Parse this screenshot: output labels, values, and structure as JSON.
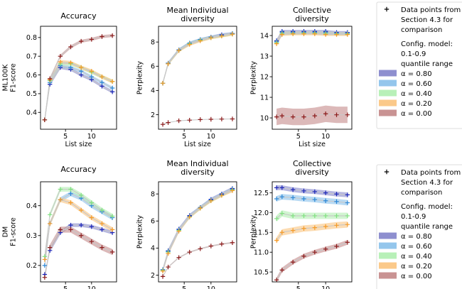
{
  "figure": {
    "legend": {
      "entries": [
        {
          "id": "data",
          "marker": "plus",
          "color": "#000000",
          "label_lines": [
            "Data points from",
            "Section 4.3 for",
            "comparison"
          ]
        },
        {
          "id": "note",
          "marker": "none",
          "color": "",
          "label_lines": [
            "Config. model:",
            "0.1-0.9",
            "quantile range"
          ]
        },
        {
          "id": "a080",
          "marker": "patch",
          "color": "#8e8fcf",
          "label_lines": [
            "α = 0.80"
          ]
        },
        {
          "id": "a060",
          "marker": "patch",
          "color": "#94c6ec",
          "label_lines": [
            "α = 0.60"
          ]
        },
        {
          "id": "a040",
          "marker": "patch",
          "color": "#b8f0b8",
          "label_lines": [
            "α = 0.40"
          ]
        },
        {
          "id": "a020",
          "marker": "patch",
          "color": "#fbc98a",
          "label_lines": [
            "α = 0.20"
          ]
        },
        {
          "id": "a000",
          "marker": "patch",
          "color": "#c99393",
          "label_lines": [
            "α = 0.00"
          ]
        }
      ]
    },
    "series_colors": {
      "0.80": {
        "band": "#8e8fcf",
        "line": "#5b5fbe",
        "marker": "#1a24b8"
      },
      "0.60": {
        "band": "#94c6ec",
        "line": "#62a7dd",
        "marker": "#2a86d6"
      },
      "0.40": {
        "band": "#b8f0b8",
        "line": "#8fdc8f",
        "marker": "#7fe07f"
      },
      "0.20": {
        "band": "#fbc98a",
        "line": "#f5ad55",
        "marker": "#f59a26"
      },
      "0.00": {
        "band": "#c99393",
        "line": "#b36f6f",
        "marker": "#8b1a1a"
      },
      "gray": "#c8c8c8"
    }
  },
  "chart_data": [
    {
      "id": "ml-accuracy",
      "type": "line",
      "title_lines": [
        "Accuracy"
      ],
      "ylabel_lines": [
        "ML100K",
        "F1-score"
      ],
      "xlabel": "List size",
      "xlim": [
        0.2,
        14.8
      ],
      "ylim": [
        0.31,
        0.86
      ],
      "xticks": [
        5,
        10
      ],
      "yticks": [
        0.4,
        0.5,
        0.6,
        0.7,
        0.8
      ],
      "ytick_labels": [
        "0.4",
        "0.5",
        "0.6",
        "0.7",
        "0.8"
      ],
      "x": [
        1,
        2,
        4,
        6,
        8,
        10,
        12,
        14
      ],
      "series": [
        {
          "alpha": "0.80",
          "values": [
            0.36,
            0.55,
            0.64,
            0.63,
            0.6,
            0.575,
            0.54,
            0.51
          ],
          "band": 0.008
        },
        {
          "alpha": "0.60",
          "values": [
            0.36,
            0.56,
            0.65,
            0.64,
            0.62,
            0.59,
            0.56,
            0.53
          ],
          "band": 0.008
        },
        {
          "alpha": "0.40",
          "values": [
            0.36,
            0.57,
            0.66,
            0.66,
            0.64,
            0.615,
            0.59,
            0.565
          ],
          "band": 0.01
        },
        {
          "alpha": "0.20",
          "values": [
            0.36,
            0.575,
            0.67,
            0.665,
            0.64,
            0.62,
            0.59,
            0.565
          ],
          "band": 0.01
        },
        {
          "alpha": "0.00",
          "values": [
            0.36,
            0.58,
            0.7,
            0.75,
            0.78,
            0.79,
            0.805,
            0.81
          ],
          "band": 0.008
        }
      ]
    },
    {
      "id": "ml-diversity",
      "type": "line",
      "title_lines": [
        "Mean Individual",
        "diversity"
      ],
      "ylabel_lines": [
        "Perplexity"
      ],
      "xlabel": "List size",
      "xlim": [
        0.2,
        14.8
      ],
      "ylim": [
        0.8,
        9.3
      ],
      "xticks": [
        5,
        10
      ],
      "yticks": [
        2,
        4,
        6,
        8
      ],
      "ytick_labels": [
        "2",
        "4",
        "6",
        "8"
      ],
      "x": [
        1,
        2,
        4,
        6,
        8,
        10,
        12,
        14
      ],
      "series": [
        {
          "alpha": "0.80",
          "values": [
            4.6,
            6.25,
            7.35,
            7.9,
            8.2,
            8.4,
            8.6,
            8.7
          ],
          "band": 0.12
        },
        {
          "alpha": "0.60",
          "values": [
            4.6,
            6.25,
            7.35,
            7.9,
            8.2,
            8.4,
            8.55,
            8.7
          ],
          "band": 0.12
        },
        {
          "alpha": "0.40",
          "values": [
            4.6,
            6.2,
            7.3,
            7.85,
            8.15,
            8.35,
            8.5,
            8.65
          ],
          "band": 0.12
        },
        {
          "alpha": "0.20",
          "values": [
            4.6,
            6.2,
            7.3,
            7.8,
            8.1,
            8.35,
            8.5,
            8.65
          ],
          "band": 0.12
        },
        {
          "alpha": "0.00",
          "values": [
            1.2,
            1.35,
            1.5,
            1.55,
            1.6,
            1.62,
            1.64,
            1.65
          ],
          "band": 0
        }
      ]
    },
    {
      "id": "ml-collective",
      "type": "line",
      "title_lines": [
        "Collective",
        "diversity"
      ],
      "ylabel_lines": [
        "Perplexity"
      ],
      "xlabel": "List size",
      "xlim": [
        0.2,
        14.8
      ],
      "ylim": [
        9.45,
        14.45
      ],
      "xticks": [
        5,
        10
      ],
      "yticks": [
        10,
        11,
        12,
        13,
        14
      ],
      "ytick_labels": [
        "10",
        "11",
        "12",
        "13",
        "14"
      ],
      "x": [
        1,
        2,
        4,
        6,
        8,
        10,
        12,
        14
      ],
      "series": [
        {
          "alpha": "0.80",
          "values": [
            13.75,
            14.2,
            14.2,
            14.2,
            14.2,
            14.2,
            14.15,
            14.15
          ],
          "band": 0.07
        },
        {
          "alpha": "0.60",
          "values": [
            13.7,
            14.15,
            14.15,
            14.15,
            14.15,
            14.15,
            14.1,
            14.1
          ],
          "band": 0.07
        },
        {
          "alpha": "0.40",
          "values": [
            13.65,
            14.1,
            14.1,
            14.12,
            14.12,
            14.1,
            14.08,
            14.08
          ],
          "band": 0.07
        },
        {
          "alpha": "0.20",
          "values": [
            13.6,
            14.05,
            14.08,
            14.08,
            14.08,
            14.05,
            14.05,
            14.05
          ],
          "band": 0.07
        },
        {
          "alpha": "0.00",
          "values": [
            10.05,
            10.1,
            10.05,
            10.05,
            10.1,
            10.2,
            10.15,
            10.15
          ],
          "band": 0.4
        }
      ]
    },
    {
      "id": "dm-accuracy",
      "type": "line",
      "title_lines": [
        "Accuracy"
      ],
      "ylabel_lines": [
        "DM",
        "F1-score"
      ],
      "xlabel": "List size",
      "xlim": [
        0.2,
        14.8
      ],
      "ylim": [
        0.145,
        0.48
      ],
      "xticks": [
        5,
        10
      ],
      "yticks": [
        0.2,
        0.3,
        0.4
      ],
      "ytick_labels": [
        "0.2",
        "0.3",
        "0.4"
      ],
      "x": [
        1,
        2,
        4,
        6,
        8,
        10,
        12,
        14
      ],
      "series": [
        {
          "alpha": "0.80",
          "values": [
            0.17,
            0.25,
            0.31,
            0.335,
            0.335,
            0.33,
            0.32,
            0.31
          ],
          "band": 0.006
        },
        {
          "alpha": "0.60",
          "values": [
            0.2,
            0.34,
            0.42,
            0.44,
            0.425,
            0.4,
            0.38,
            0.36
          ],
          "band": 0.008
        },
        {
          "alpha": "0.40",
          "values": [
            0.23,
            0.37,
            0.455,
            0.455,
            0.435,
            0.41,
            0.385,
            0.365
          ],
          "band": 0.008
        },
        {
          "alpha": "0.20",
          "values": [
            0.22,
            0.34,
            0.42,
            0.41,
            0.385,
            0.36,
            0.34,
            0.32
          ],
          "band": 0.008
        },
        {
          "alpha": "0.00",
          "values": [
            0.16,
            0.26,
            0.32,
            0.32,
            0.3,
            0.28,
            0.26,
            0.245
          ],
          "band": 0.01
        }
      ]
    },
    {
      "id": "dm-diversity",
      "type": "line",
      "title_lines": [
        "Mean Individual",
        "diversity"
      ],
      "ylabel_lines": [
        "Perplexity"
      ],
      "xlabel": "List size",
      "xlim": [
        0.2,
        14.8
      ],
      "ylim": [
        1.5,
        8.9
      ],
      "xticks": [
        5,
        10
      ],
      "yticks": [
        2,
        4,
        6,
        8
      ],
      "ytick_labels": [
        "2",
        "4",
        "6",
        "8"
      ],
      "x": [
        1,
        2,
        4,
        6,
        8,
        10,
        12,
        14
      ],
      "series": [
        {
          "alpha": "0.80",
          "values": [
            2.4,
            3.8,
            5.4,
            6.4,
            7.0,
            7.6,
            8.0,
            8.4
          ],
          "band": 0.12
        },
        {
          "alpha": "0.60",
          "values": [
            2.4,
            3.75,
            5.35,
            6.35,
            7.0,
            7.55,
            7.95,
            8.35
          ],
          "band": 0.12
        },
        {
          "alpha": "0.40",
          "values": [
            2.35,
            3.7,
            5.3,
            6.3,
            6.95,
            7.5,
            7.9,
            8.3
          ],
          "band": 0.12
        },
        {
          "alpha": "0.20",
          "values": [
            2.3,
            3.6,
            5.25,
            6.3,
            6.95,
            7.5,
            7.9,
            8.25
          ],
          "band": 0.12
        },
        {
          "alpha": "0.00",
          "values": [
            1.9,
            2.6,
            3.3,
            3.7,
            3.95,
            4.15,
            4.3,
            4.4
          ],
          "band": 0.05
        }
      ]
    },
    {
      "id": "dm-collective",
      "type": "line",
      "title_lines": [
        "Collective",
        "diversity"
      ],
      "ylabel_lines": [
        "Perplexity"
      ],
      "xlabel": "List size",
      "xlim": [
        0.2,
        14.8
      ],
      "ylim": [
        10.25,
        12.78
      ],
      "xticks": [
        5,
        10
      ],
      "yticks": [
        10.5,
        11.0,
        11.5,
        12.0,
        12.5
      ],
      "ytick_labels": [
        "10.5",
        "11.0",
        "11.5",
        "12.0",
        "12.5"
      ],
      "x": [
        1,
        2,
        4,
        6,
        8,
        10,
        12,
        14
      ],
      "series": [
        {
          "alpha": "0.80",
          "values": [
            12.63,
            12.63,
            12.58,
            12.55,
            12.53,
            12.5,
            12.47,
            12.45
          ],
          "band": 0.06
        },
        {
          "alpha": "0.60",
          "values": [
            12.35,
            12.4,
            12.38,
            12.35,
            12.33,
            12.3,
            12.28,
            12.25
          ],
          "band": 0.07
        },
        {
          "alpha": "0.40",
          "values": [
            11.85,
            11.98,
            11.92,
            11.92,
            11.92,
            11.92,
            11.92,
            11.92
          ],
          "band": 0.08
        },
        {
          "alpha": "0.20",
          "values": [
            11.3,
            11.5,
            11.55,
            11.6,
            11.62,
            11.65,
            11.68,
            11.7
          ],
          "band": 0.08
        },
        {
          "alpha": "0.00",
          "values": [
            10.3,
            10.55,
            10.75,
            10.9,
            11.0,
            11.08,
            11.15,
            11.25
          ],
          "band": 0.06
        }
      ]
    }
  ]
}
